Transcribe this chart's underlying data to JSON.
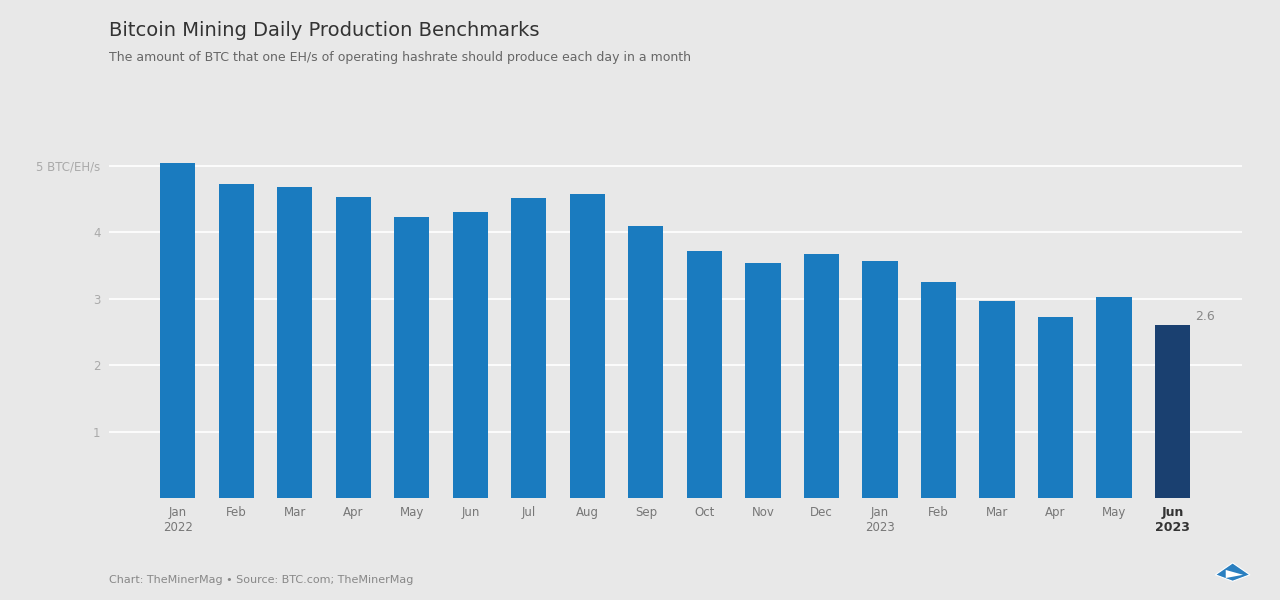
{
  "title": "Bitcoin Mining Daily Production Benchmarks",
  "subtitle": "The amount of BTC that one EH/s of operating hashrate should produce each day in a month",
  "footer": "Chart: TheMinerMag • Source: BTC.com; TheMinerMag",
  "categories": [
    "Jan\n2022",
    "Feb",
    "Mar",
    "Apr",
    "May",
    "Jun",
    "Jul",
    "Aug",
    "Sep",
    "Oct",
    "Nov",
    "Dec",
    "Jan\n2023",
    "Feb",
    "Mar",
    "Apr",
    "May",
    "Jun\n2023"
  ],
  "values": [
    5.05,
    4.72,
    4.68,
    4.53,
    4.23,
    4.3,
    4.52,
    4.57,
    4.1,
    3.72,
    3.54,
    3.68,
    3.57,
    3.25,
    2.97,
    2.72,
    3.02,
    2.6
  ],
  "bar_colors": [
    "#1a7bbf",
    "#1a7bbf",
    "#1a7bbf",
    "#1a7bbf",
    "#1a7bbf",
    "#1a7bbf",
    "#1a7bbf",
    "#1a7bbf",
    "#1a7bbf",
    "#1a7bbf",
    "#1a7bbf",
    "#1a7bbf",
    "#1a7bbf",
    "#1a7bbf",
    "#1a7bbf",
    "#1a7bbf",
    "#1a7bbf",
    "#1a4070"
  ],
  "last_bar_label": "2.6",
  "yticks": [
    1,
    2,
    3,
    4,
    5
  ],
  "ylim": [
    0,
    5.6
  ],
  "background_color": "#e8e8e8",
  "plot_bg_color": "#e8e8e8",
  "grid_color": "#ffffff",
  "title_fontsize": 14,
  "subtitle_fontsize": 9,
  "axis_fontsize": 8.5,
  "footer_fontsize": 8
}
